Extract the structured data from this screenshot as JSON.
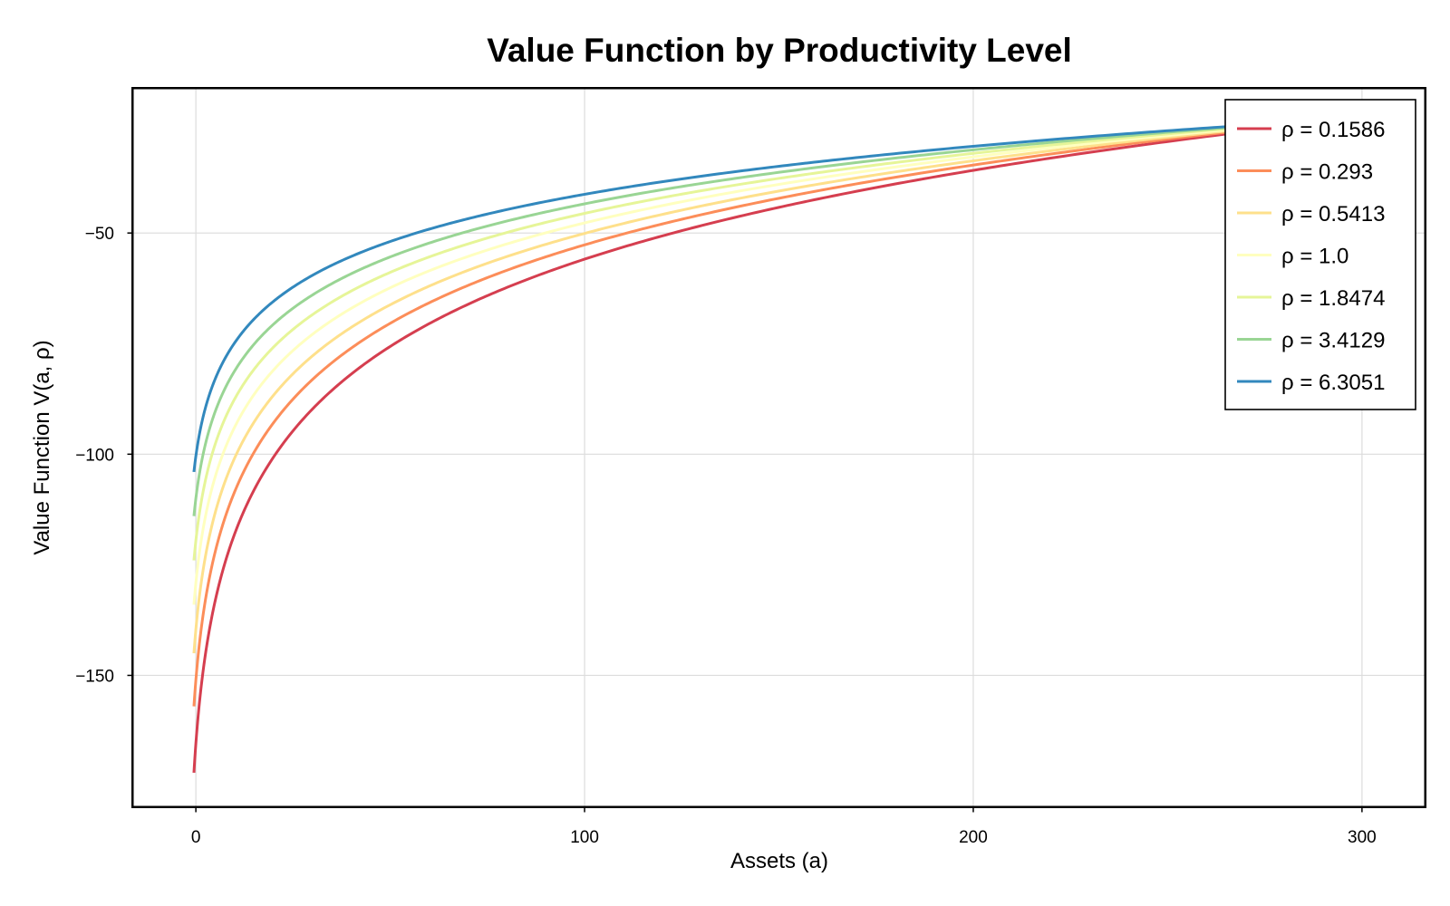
{
  "chart_data": {
    "type": "line",
    "title": "Value Function by Productivity Level",
    "xlabel": "Assets (a)",
    "ylabel": "Value Function V(a, ρ)",
    "xlim": [
      -16,
      316
    ],
    "ylim": [
      -179.5,
      -17.5
    ],
    "xticks": [
      0,
      100,
      200,
      300
    ],
    "xtick_labels": [
      "0",
      "100",
      "200",
      "300"
    ],
    "yticks": [
      -50,
      -100,
      -150
    ],
    "ytick_labels": [
      "−50",
      "−100",
      "−150"
    ],
    "grid": true,
    "legend_position": "top-right",
    "x_range": [
      -0.5,
      300
    ],
    "series": [
      {
        "name": "ρ = 0.1586",
        "color": "#d53e4f",
        "y_at_a_min": -172,
        "y_at_a_max": -24
      },
      {
        "name": "ρ = 0.293",
        "color": "#fc8d59",
        "y_at_a_min": -157,
        "y_at_a_max": -24
      },
      {
        "name": "ρ = 0.5413",
        "color": "#fee08b",
        "y_at_a_min": -145,
        "y_at_a_max": -24
      },
      {
        "name": "ρ = 1.0",
        "color": "#ffffbf",
        "y_at_a_min": -134,
        "y_at_a_max": -24
      },
      {
        "name": "ρ = 1.8474",
        "color": "#e6f598",
        "y_at_a_min": -124,
        "y_at_a_max": -24
      },
      {
        "name": "ρ = 3.4129",
        "color": "#99d594",
        "y_at_a_min": -114,
        "y_at_a_max": -24
      },
      {
        "name": "ρ = 6.3051",
        "color": "#3288bd",
        "y_at_a_min": -104,
        "y_at_a_max": -24
      }
    ]
  }
}
